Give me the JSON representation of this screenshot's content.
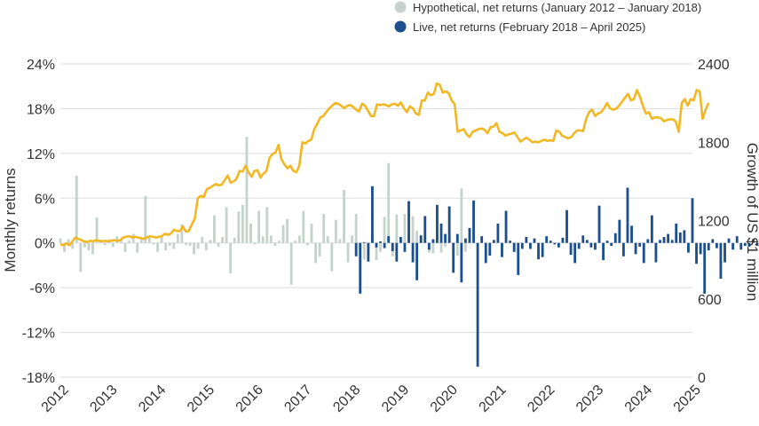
{
  "chart_data": {
    "type": "bar+line",
    "title": "",
    "legend": {
      "placement": "top-right",
      "entries": [
        {
          "label": "Hypothetical, net returns (January 2012 – January 2018)",
          "color": "#c5d3cc"
        },
        {
          "label": "Live, net returns (February 2018 – April 2025)",
          "color": "#1c4f8c"
        }
      ]
    },
    "y_left": {
      "label": "Monthly returns",
      "ticks": [
        "24%",
        "18%",
        "12%",
        "6%",
        "0%",
        "-6%",
        "-12%",
        "-18%"
      ],
      "range": [
        -18,
        24
      ]
    },
    "y_right": {
      "label": "Growth of US $1 million",
      "ticks": [
        "2400",
        "1800",
        "1200",
        "600",
        "0"
      ],
      "range": [
        0,
        2400
      ]
    },
    "x_ticks": [
      "2012",
      "2013",
      "2014",
      "2015",
      "2016",
      "2017",
      "2018",
      "2019",
      "2020",
      "2021",
      "2022",
      "2023",
      "2024",
      "2025"
    ],
    "colors": {
      "hypothetical": "#c5d3cc",
      "live": "#1c4f8c",
      "growth_line": "#f2b824",
      "grid": "#dddddd"
    },
    "bars_hypothetical": {
      "start": "2012-01",
      "values": [
        0.6,
        -1.2,
        0.5,
        -0.8,
        9.0,
        -3.9,
        -0.6,
        -1.0,
        -1.5,
        3.4,
        0.4,
        -0.3,
        0.5,
        -0.5,
        0.9,
        0.4,
        -1.2,
        0.3,
        1.2,
        -1.3,
        0.5,
        6.3,
        0.7,
        -0.2,
        -1.2,
        1.0,
        -1.0,
        -0.4,
        -0.8,
        1.2,
        2.5,
        -0.3,
        -0.4,
        -1.5,
        -0.8,
        0.8,
        -1.0,
        0.4,
        3.7,
        -0.5,
        0.8,
        4.8,
        -4.1,
        0.7,
        4.2,
        5.1,
        14.2,
        2.6,
        -0.2,
        4.3,
        0.9,
        4.8,
        1.0,
        -0.4,
        0.3,
        2.4,
        3.2,
        -5.6,
        0.3,
        1.0,
        4.3,
        -0.3,
        2.6,
        -2.7,
        -1.8,
        3.9,
        0.9,
        -3.8,
        3.1,
        0.5,
        7.1,
        -2.6,
        1.0,
        3.9,
        -4.8,
        -2.2,
        -1.4,
        0.9,
        -2.3,
        -1.2,
        3.5,
        10.7,
        -1.8,
        3.8,
        0.3,
        3.9,
        1.0,
        3.6,
        1.6,
        1.1,
        0.9,
        -1.3,
        -1.4,
        0.1,
        -1.3,
        -0.5,
        0.9,
        -1.3,
        -1.7,
        7.3,
        -1.2
      ]
    },
    "bars_live": {
      "start": "2018-02",
      "values": [
        -1.8,
        -6.8,
        0.1,
        -2.5,
        7.6,
        -0.6,
        0.2,
        -0.7,
        0.9,
        -1.1,
        -2.5,
        0.8,
        -1.2,
        5.6,
        -2.6,
        -5.0,
        1.0,
        3.6,
        -0.9,
        0.5,
        5.1,
        2.6,
        1.2,
        4.9,
        -4.0,
        1.2,
        -5.3,
        0.6,
        2.0,
        5.7,
        -16.6,
        0.9,
        -2.7,
        -1.7,
        0.4,
        2.6,
        -1.9,
        4.3,
        0.3,
        -1.2,
        -4.3,
        -0.8,
        0.8,
        -0.8,
        0.6,
        -2.2,
        -1.9,
        0.9,
        0.3,
        -0.2,
        -0.6,
        0.7,
        4.4,
        -1.6,
        -2.7,
        -0.8,
        1.0,
        0.4,
        -0.6,
        -0.9,
        5.0,
        -2.3,
        0.3,
        -0.4,
        1.3,
        3.1,
        -1.8,
        7.4,
        2.3,
        -1.5,
        -0.5,
        -2.7,
        0.5,
        3.7,
        -2.6,
        0.4,
        0.8,
        1.2,
        0.4,
        2.6,
        1.4,
        1.7,
        -1.3,
        6.0,
        -2.8,
        -1.5,
        -6.8,
        -1.0,
        0.5,
        -0.7,
        -4.8,
        -2.6,
        0.6,
        -0.9,
        0.9,
        -0.9,
        -0.4,
        -0.5,
        0.5,
        -0.4,
        -5.0,
        11.2,
        2.0,
        -4.9,
        1.9,
        -0.5,
        6.1,
        -1.7,
        -7.2,
        1.5,
        3.8
      ]
    },
    "growth_line": {
      "start": "2012-01",
      "values": [
        1020,
        1010,
        1025,
        1010,
        1040,
        1070,
        1060,
        1050,
        1040,
        1035,
        1045,
        1040,
        1050,
        1045,
        1040,
        1045,
        1040,
        1045,
        1050,
        1045,
        1050,
        1070,
        1075,
        1080,
        1070,
        1075,
        1070,
        1065,
        1060,
        1070,
        1080,
        1075,
        1070,
        1075,
        1080,
        1100,
        1090,
        1100,
        1130,
        1120,
        1120,
        1155,
        1115,
        1120,
        1170,
        1215,
        1370,
        1390,
        1380,
        1440,
        1450,
        1465,
        1480,
        1470,
        1475,
        1510,
        1545,
        1490,
        1500,
        1520,
        1580,
        1575,
        1620,
        1570,
        1535,
        1580,
        1585,
        1530,
        1560,
        1580,
        1680,
        1710,
        1720,
        1780,
        1670,
        1630,
        1600,
        1620,
        1580,
        1570,
        1620,
        1800,
        1790,
        1810,
        1820,
        1900,
        1940,
        1990,
        2000,
        2030,
        2060,
        2080,
        2100,
        2095,
        2080,
        2060,
        2080,
        2085,
        2070,
        2050,
        2035,
        2095,
        2080,
        2040,
        2000,
        2000,
        2090,
        2085,
        2090,
        2085,
        2075,
        2090,
        2095,
        2080,
        2105,
        2060,
        2030,
        2075,
        2060,
        2020,
        2010,
        2120,
        2120,
        2180,
        2160,
        2170,
        2250,
        2240,
        2180,
        2190,
        2175,
        2120,
        2090,
        1880,
        1890,
        1900,
        1860,
        1840,
        1880,
        1890,
        1900,
        1905,
        1895,
        1870,
        1915,
        1920,
        1945,
        1880,
        1870,
        1850,
        1860,
        1865,
        1875,
        1840,
        1805,
        1820,
        1835,
        1820,
        1800,
        1805,
        1800,
        1810,
        1820,
        1810,
        1815,
        1810,
        1890,
        1880,
        1850,
        1840,
        1830,
        1840,
        1870,
        1890,
        1890,
        1885,
        1980,
        2030,
        2050,
        2000,
        2020,
        2030,
        2060,
        2100,
        2060,
        2050,
        2055,
        2080,
        2110,
        2140,
        2170,
        2120,
        2130,
        2200,
        2150,
        2080,
        2020,
        2030,
        1980,
        1990,
        1990,
        1985,
        1960,
        1970,
        1975,
        1975,
        1960,
        1880,
        2100,
        2130,
        2080,
        2130,
        2120,
        2200,
        2190,
        1980,
        2050,
        2100
      ]
    }
  }
}
